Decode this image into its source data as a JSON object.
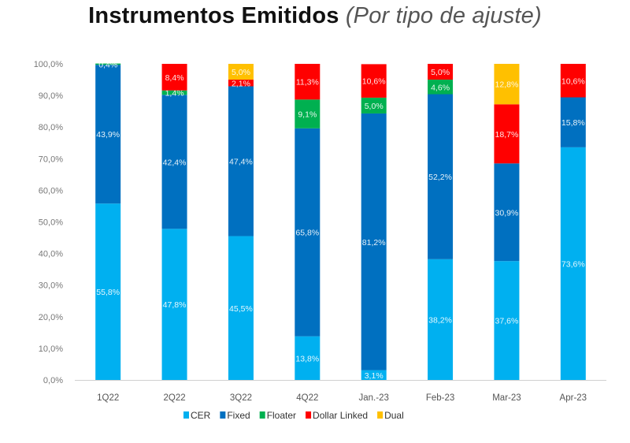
{
  "chart_data": {
    "type": "bar",
    "stacked": true,
    "title": "Instrumentos Emitidos",
    "subtitle": "(Por tipo de ajuste)",
    "xlabel": "",
    "ylabel": "",
    "ylim": [
      0,
      100
    ],
    "yticks": [
      0,
      10,
      20,
      30,
      40,
      50,
      60,
      70,
      80,
      90,
      100
    ],
    "ytick_labels": [
      "0,0%",
      "10,0%",
      "20,0%",
      "30,0%",
      "40,0%",
      "50,0%",
      "60,0%",
      "70,0%",
      "80,0%",
      "90,0%",
      "100,0%"
    ],
    "grid": false,
    "legend_position": "bottom",
    "categories": [
      "1Q22",
      "2Q22",
      "3Q22",
      "4Q22",
      "Jan.-23",
      "Feb-23",
      "Mar-23",
      "Apr-23"
    ],
    "series": [
      {
        "name": "CER",
        "color": "#00B0F0",
        "values": [
          55.8,
          47.8,
          45.5,
          13.8,
          3.1,
          38.2,
          37.6,
          73.6
        ],
        "labels": [
          "55,8%",
          "47,8%",
          "45,5%",
          "13,8%",
          "3,1%",
          "38,2%",
          "37,6%",
          "73,6%"
        ]
      },
      {
        "name": "Fixed",
        "color": "#0070C0",
        "values": [
          43.9,
          42.4,
          47.4,
          65.8,
          81.2,
          52.2,
          30.9,
          15.8
        ],
        "labels": [
          "43,9%",
          "42,4%",
          "47,4%",
          "65,8%",
          "81,2%",
          "52,2%",
          "30,9%",
          "15,8%"
        ]
      },
      {
        "name": "Floater",
        "color": "#00B050",
        "values": [
          0.4,
          1.4,
          0,
          9.1,
          5.0,
          4.6,
          0,
          0
        ],
        "labels": [
          "0,4%",
          "1,4%",
          "",
          "9,1%",
          "5,0%",
          "4,6%",
          "",
          ""
        ]
      },
      {
        "name": "Dollar Linked",
        "color": "#FF0000",
        "values": [
          0,
          8.4,
          2.1,
          11.3,
          10.6,
          5.0,
          18.7,
          10.6
        ],
        "labels": [
          "",
          "8,4%",
          "2,1%",
          "11,3%",
          "10,6%",
          "5,0%",
          "18,7%",
          "10,6%"
        ]
      },
      {
        "name": "Dual",
        "color": "#FFC000",
        "values": [
          0,
          0,
          5.0,
          0,
          0,
          0,
          12.8,
          0
        ],
        "labels": [
          "",
          "",
          "5,0%",
          "",
          "",
          "",
          "12,8%",
          ""
        ]
      }
    ]
  }
}
